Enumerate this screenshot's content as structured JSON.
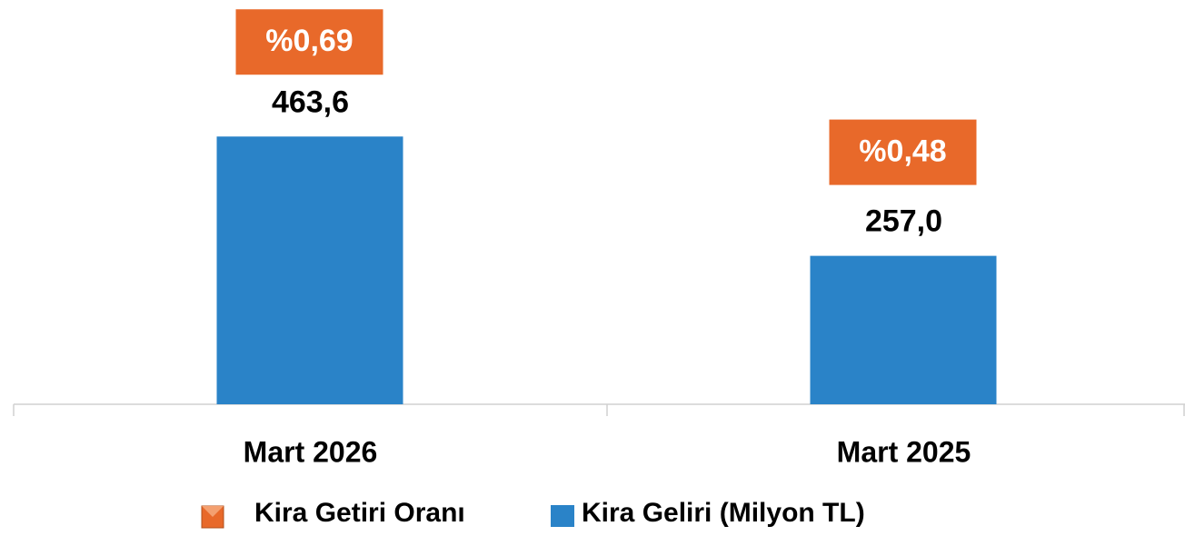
{
  "chart_data": {
    "type": "bar",
    "categories": [
      "Mart 2026",
      "Mart 2025"
    ],
    "series": [
      {
        "name": "Kira Getiri Oranı",
        "color": "#e8692a",
        "axis": "y2",
        "values": [
          0.69,
          0.48
        ],
        "value_labels": [
          "%0,69",
          "%0,48"
        ]
      },
      {
        "name": "Kira Geliri (Milyon TL)",
        "color": "#2a83c8",
        "values": [
          463.6,
          257.0
        ],
        "value_labels": [
          "463,6",
          "257,0"
        ]
      }
    ],
    "ylim": [
      0,
      700
    ],
    "y2lim": [
      0,
      0.77
    ],
    "legend": "bottom"
  }
}
